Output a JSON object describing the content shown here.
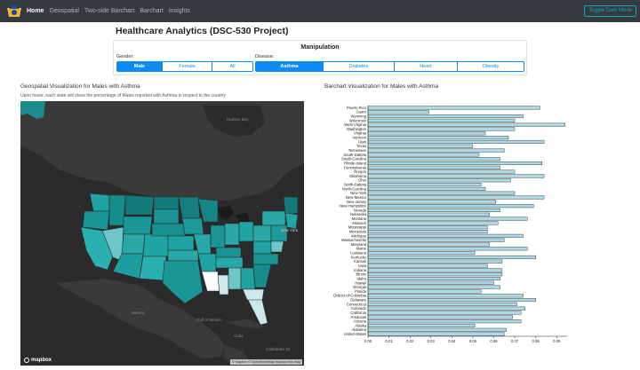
{
  "nav": {
    "items": [
      {
        "label": "Home",
        "active": true
      },
      {
        "label": "Geospatial",
        "active": false
      },
      {
        "label": "Two-side Barchart",
        "active": false
      },
      {
        "label": "Barchart",
        "active": false
      },
      {
        "label": "Insights",
        "active": false
      }
    ],
    "toggle_label": "Toggle Dark Mode"
  },
  "page_title": "Healthcare Analytics (DSC-530 Project)",
  "manipulation": {
    "title": "Manipulation",
    "gender_label": "Gender:",
    "gender_options": [
      "Male",
      "Female",
      "All"
    ],
    "gender_selected": "Male",
    "disease_label": "Disease:",
    "disease_options": [
      "Asthma",
      "Diabetes",
      "Heart",
      "Obesity"
    ],
    "disease_selected": "Asthma"
  },
  "geo": {
    "title": "Geospatial Visualization for Males with Asthma",
    "subtitle": "Upon hover, each state will show the percentage of Males reported with Asthma in respect to the country",
    "labels": {
      "hudson_bay": "Hudson Bay",
      "gulf_mexico": "Gulf of Mexico",
      "cuba": "Cuba",
      "caribbean": "Caribbean Se",
      "mexico": "Mexico",
      "new_york": "New York"
    },
    "logo": "mapbox",
    "attribution": "© Mapbox © OpenStreetMap  Improve this map",
    "colors": {
      "ocean": "#2b2b2b",
      "land": "#3c3c3c",
      "teal_dark": "#137f7f",
      "teal_mid": "#1fa3a3",
      "teal_light": "#6fc6c6",
      "pale": "#c9e6e6",
      "white": "#eeeeee"
    }
  },
  "chart_data": {
    "type": "bar",
    "orientation": "horizontal",
    "title": "Barchart Visualization for Males with Asthma",
    "categories": [
      "Puerto Rico",
      "Guam",
      "Wyoming",
      "Wisconsin",
      "West-Virginia",
      "Washington",
      "Virginia",
      "Vermont",
      "Utah",
      "Texas",
      "Tennessee",
      "South-Dakota",
      "South-Carolina",
      "Rhode-Island",
      "Pennsylvania",
      "Oregon",
      "Oklahoma",
      "Ohio",
      "North-Dakota",
      "North-Carolina",
      "New-York",
      "New-Mexico",
      "New-Jersey",
      "New-Hampshire",
      "Nevada",
      "Nebraska",
      "Montana",
      "Missouri",
      "Mississippi",
      "Minnesota",
      "Michigan",
      "Massachusetts",
      "Maryland",
      "Maine",
      "Louisiana",
      "Kentucky",
      "Kansas",
      "Iowa",
      "Indiana",
      "Illinois",
      "Idaho",
      "Hawaii",
      "Georgia",
      "Florida",
      "District-of-Columbia",
      "Delaware",
      "Connecticut",
      "Colorado",
      "California",
      "Arkansas",
      "Arizona",
      "Alaska",
      "Alabama",
      "United-States"
    ],
    "values": [
      0.082,
      0.029,
      0.074,
      0.07,
      0.094,
      0.07,
      0.056,
      0.067,
      0.084,
      0.05,
      0.065,
      0.053,
      0.063,
      0.083,
      0.063,
      0.07,
      0.084,
      0.068,
      0.054,
      0.056,
      0.07,
      0.084,
      0.061,
      0.079,
      0.063,
      0.058,
      0.076,
      0.062,
      0.057,
      0.057,
      0.074,
      0.065,
      0.058,
      0.076,
      0.051,
      0.08,
      0.064,
      0.057,
      0.064,
      0.064,
      0.063,
      0.06,
      0.063,
      0.054,
      0.074,
      0.08,
      0.071,
      0.075,
      0.073,
      0.069,
      0.073,
      0.051,
      0.066,
      0.065
    ],
    "xticks": [
      "0.00",
      "0.01",
      "0.02",
      "0.03",
      "0.04",
      "0.05",
      "0.06",
      "0.07",
      "0.08",
      "0.09"
    ],
    "xlim": [
      0,
      0.095
    ],
    "colors": {
      "bar": "#add8e6",
      "stroke": "#222222"
    }
  }
}
